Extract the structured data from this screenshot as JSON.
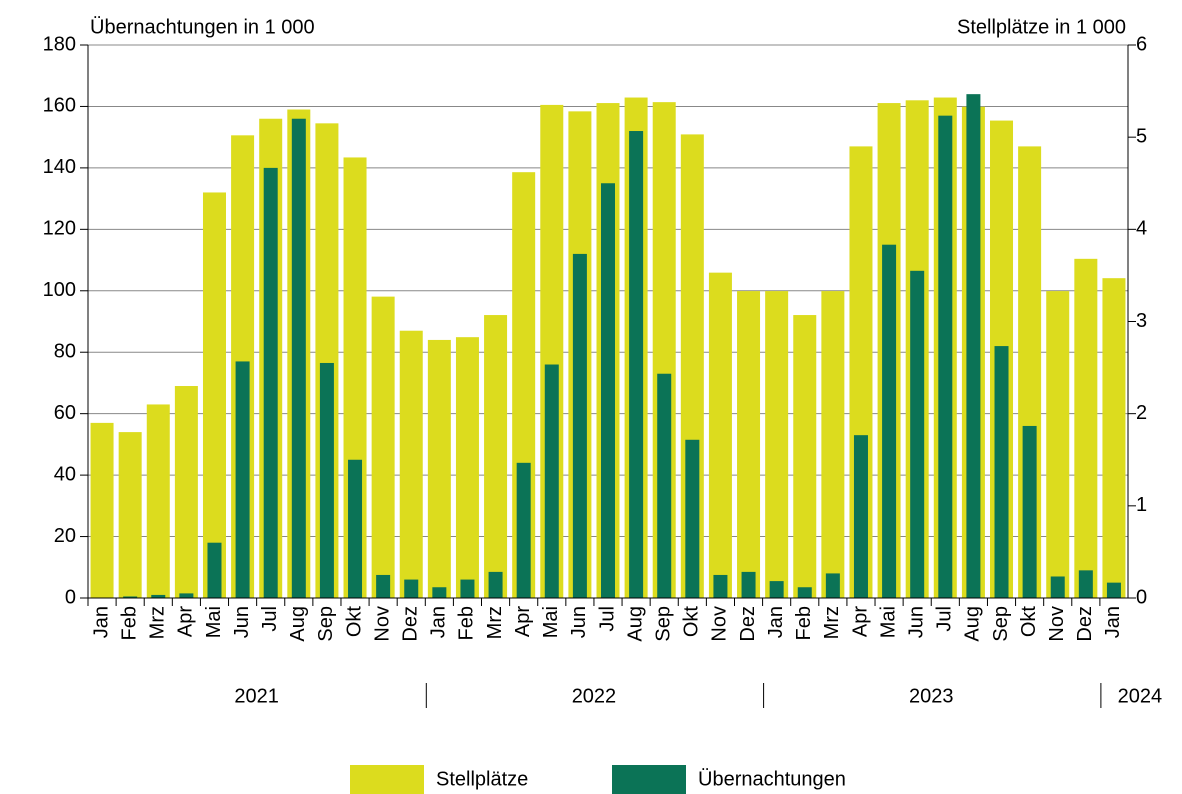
{
  "chart_data": {
    "type": "bar",
    "left_axis_title": "Übernachtungen in 1 000",
    "right_axis_title": "Stellplätze in 1 000",
    "categories": [
      "Jan",
      "Feb",
      "Mrz",
      "Apr",
      "Mai",
      "Jun",
      "Jul",
      "Aug",
      "Sep",
      "Okt",
      "Nov",
      "Dez",
      "Jan",
      "Feb",
      "Mrz",
      "Apr",
      "Mai",
      "Jun",
      "Jul",
      "Aug",
      "Sep",
      "Okt",
      "Nov",
      "Dez",
      "Jan",
      "Feb",
      "Mrz",
      "Apr",
      "Mai",
      "Jun",
      "Jul",
      "Aug",
      "Sep",
      "Okt",
      "Nov",
      "Dez",
      "Jan"
    ],
    "groups": [
      {
        "label": "2021",
        "count": 12
      },
      {
        "label": "2022",
        "count": 12
      },
      {
        "label": "2023",
        "count": 12
      },
      {
        "label": "2024",
        "count": 1
      }
    ],
    "series": [
      {
        "name": "Stellplätze",
        "color": "#dcdc1e",
        "axis": "y2",
        "values": [
          1.9,
          1.8,
          2.1,
          2.3,
          4.4,
          5.02,
          5.2,
          5.3,
          5.15,
          4.78,
          3.27,
          2.9,
          2.8,
          2.83,
          3.07,
          4.62,
          5.35,
          5.28,
          5.37,
          5.43,
          5.38,
          5.03,
          3.53,
          3.33,
          3.33,
          3.07,
          3.33,
          4.9,
          5.37,
          5.4,
          5.43,
          5.33,
          5.18,
          4.9,
          3.33,
          3.68,
          3.47
        ]
      },
      {
        "name": "Übernachtungen",
        "color": "#0b7356",
        "values": [
          0,
          0.5,
          1,
          1.5,
          18,
          77,
          140,
          156,
          76.5,
          45,
          7.5,
          6,
          3.5,
          6,
          8.5,
          44,
          76,
          112,
          135,
          152,
          73,
          51.5,
          7.5,
          8.5,
          5.5,
          3.5,
          8,
          53,
          115,
          106.5,
          157,
          164,
          82,
          56,
          7,
          9,
          5
        ]
      }
    ],
    "ylim": [
      0,
      180
    ],
    "yticks": [
      0,
      20,
      40,
      60,
      80,
      100,
      120,
      140,
      160,
      180
    ],
    "y2lim": [
      0,
      6
    ],
    "y2ticks": [
      0,
      1,
      2,
      3,
      4,
      5,
      6
    ],
    "grid": true
  }
}
